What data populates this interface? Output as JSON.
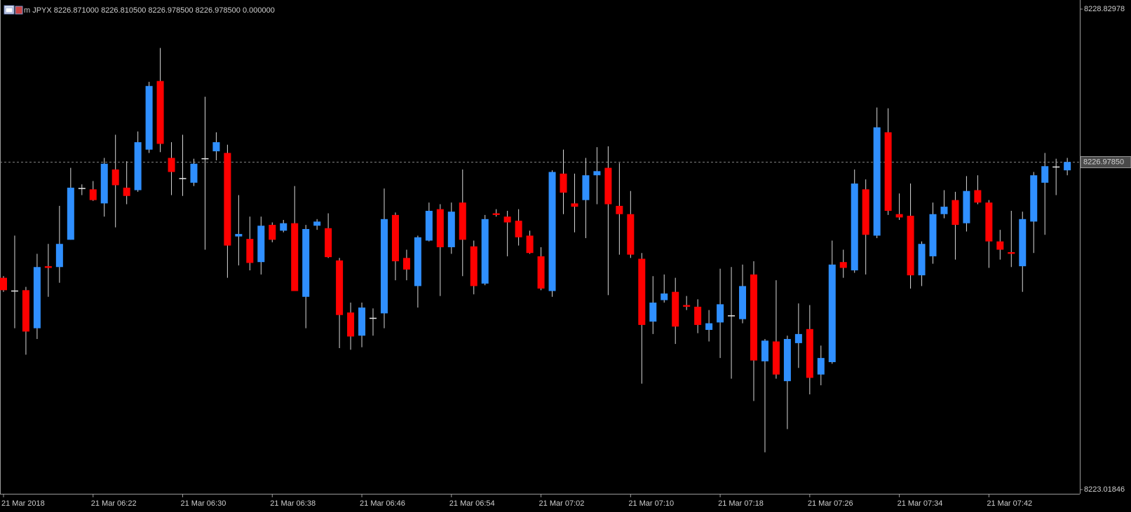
{
  "chart_data": {
    "type": "candlestick",
    "title": "m JPYX 8226.871000 8226.810500 8226.978500 8226.978500 0.000000",
    "up_color": "#2f8fff",
    "down_color": "#ff0000",
    "doji_color": "#e8e8e8",
    "wick_color": "#d8d8d8",
    "ylim": [
      8223.01846,
      8228.82978
    ],
    "yticks": [
      8223.01846,
      8228.82978
    ],
    "price_line": {
      "value": 8226.9785,
      "label": "8226.97850"
    },
    "categories": [
      "21 Mar 2018",
      null,
      null,
      null,
      null,
      null,
      null,
      null,
      "21 Mar 06:22",
      null,
      null,
      null,
      null,
      null,
      null,
      null,
      "21 Mar 06:30",
      null,
      null,
      null,
      null,
      null,
      null,
      null,
      "21 Mar 06:38",
      null,
      null,
      null,
      null,
      null,
      null,
      null,
      "21 Mar 06:46",
      null,
      null,
      null,
      null,
      null,
      null,
      null,
      "21 Mar 06:54",
      null,
      null,
      null,
      null,
      null,
      null,
      null,
      "21 Mar 07:02",
      null,
      null,
      null,
      null,
      null,
      null,
      null,
      "21 Mar 07:10",
      null,
      null,
      null,
      null,
      null,
      null,
      null,
      "21 Mar 07:18",
      null,
      null,
      null,
      null,
      null,
      null,
      null,
      "21 Mar 07:26",
      null,
      null,
      null,
      null,
      null,
      null,
      null,
      "21 Mar 07:34",
      null,
      null,
      null,
      null,
      null,
      null,
      null,
      "21 Mar 07:42",
      null,
      null,
      null,
      null,
      null,
      null,
      null
    ],
    "open": [
      8225.58,
      8225.42,
      8225.43,
      8224.97,
      8225.72,
      8225.71,
      8226.04,
      8226.66,
      8226.65,
      8226.48,
      8226.89,
      8226.67,
      8226.64,
      8227.13,
      8227.96,
      8227.03,
      8226.78,
      8226.73,
      8227.02,
      8227.11,
      8227.09,
      8226.08,
      8226.05,
      8225.77,
      8226.22,
      8226.15,
      8226.24,
      8225.35,
      8226.21,
      8226.18,
      8225.79,
      8225.16,
      8224.88,
      8225.09,
      8225.15,
      8226.34,
      8225.82,
      8225.48,
      8226.03,
      8226.41,
      8225.95,
      8226.49,
      8225.96,
      8225.51,
      8226.36,
      8226.32,
      8226.27,
      8226.09,
      8225.84,
      8225.42,
      8226.84,
      8226.48,
      8226.52,
      8226.82,
      8226.91,
      8226.45,
      8226.35,
      8225.81,
      8225.05,
      8225.31,
      8225.41,
      8225.25,
      8225.23,
      8224.95,
      8225.04,
      8225.12,
      8225.08,
      8225.62,
      8224.57,
      8224.81,
      8224.33,
      8224.79,
      8224.96,
      8224.41,
      8224.56,
      8225.77,
      8225.67,
      8226.65,
      8226.09,
      8227.34,
      8226.35,
      8226.33,
      8225.61,
      8225.84,
      8226.35,
      8226.52,
      8226.24,
      8226.64,
      8226.49,
      8226.02,
      8225.89,
      8225.72,
      8226.26,
      8226.73,
      8226.92,
      8226.88
    ],
    "high": [
      8225.6,
      8226.09,
      8225.47,
      8225.87,
      8225.99,
      8226.45,
      8226.91,
      8226.71,
      8226.75,
      8227.03,
      8227.31,
      8226.99,
      8227.35,
      8227.95,
      8228.36,
      8227.22,
      8227.31,
      8227.02,
      8227.77,
      8227.34,
      8227.19,
      8226.58,
      8226.32,
      8226.32,
      8226.25,
      8226.28,
      8226.69,
      8226.22,
      8226.29,
      8226.36,
      8225.82,
      8225.28,
      8225.28,
      8225.21,
      8226.66,
      8226.37,
      8225.92,
      8226.09,
      8226.49,
      8226.47,
      8226.49,
      8226.89,
      8226.03,
      8226.34,
      8226.41,
      8226.39,
      8226.41,
      8226.15,
      8225.95,
      8226.88,
      8227.13,
      8226.84,
      8227.03,
      8227.16,
      8227.17,
      8226.97,
      8226.63,
      8225.88,
      8225.6,
      8225.62,
      8225.58,
      8225.36,
      8225.32,
      8225.19,
      8225.69,
      8225.71,
      8225.74,
      8225.78,
      8224.84,
      8225.55,
      8224.88,
      8225.27,
      8225.25,
      8224.76,
      8226.03,
      8225.92,
      8226.89,
      8226.77,
      8227.64,
      8227.63,
      8226.6,
      8226.72,
      8226.02,
      8226.49,
      8226.64,
      8226.62,
      8226.81,
      8226.82,
      8226.52,
      8226.16,
      8226.39,
      8226.38,
      8226.86,
      8227.09,
      8227.02,
      8227.03
    ],
    "low": [
      8225.41,
      8224.97,
      8224.65,
      8224.84,
      8225.35,
      8225.52,
      8226.04,
      8226.58,
      8226.51,
      8226.32,
      8226.19,
      8226.47,
      8226.62,
      8227.09,
      8227.1,
      8226.58,
      8226.57,
      8226.69,
      8225.92,
      8227.0,
      8225.58,
      8225.73,
      8225.67,
      8225.62,
      8226.01,
      8226.13,
      8225.42,
      8224.97,
      8226.16,
      8225.82,
      8224.73,
      8224.71,
      8224.74,
      8224.88,
      8224.97,
      8225.55,
      8225.55,
      8225.22,
      8226.02,
      8225.36,
      8225.87,
      8225.6,
      8225.38,
      8225.49,
      8226.32,
      8225.84,
      8225.97,
      8225.87,
      8225.43,
      8225.35,
      8226.35,
      8226.13,
      8226.06,
      8226.47,
      8225.37,
      8225.86,
      8225.82,
      8224.3,
      8224.9,
      8225.28,
      8224.78,
      8225.19,
      8224.91,
      8224.81,
      8224.61,
      8224.36,
      8225.03,
      8224.09,
      8223.47,
      8224.36,
      8223.75,
      8224.49,
      8224.17,
      8224.28,
      8224.54,
      8225.58,
      8225.64,
      8225.62,
      8226.06,
      8226.34,
      8226.28,
      8225.45,
      8225.48,
      8225.75,
      8226.3,
      8225.8,
      8226.14,
      8226.47,
      8225.7,
      8225.8,
      8225.71,
      8225.41,
      8225.88,
      8226.1,
      8226.58,
      8226.82
    ],
    "close": [
      8225.43,
      8225.42,
      8224.93,
      8225.71,
      8225.7,
      8225.99,
      8226.67,
      8226.66,
      8226.52,
      8226.96,
      8226.7,
      8226.57,
      8227.22,
      8227.9,
      8227.2,
      8226.86,
      8226.78,
      8226.96,
      8227.02,
      8227.22,
      8225.97,
      8226.11,
      8225.76,
      8226.21,
      8226.04,
      8226.24,
      8225.42,
      8226.17,
      8226.26,
      8225.83,
      8225.13,
      8224.87,
      8225.22,
      8225.09,
      8226.29,
      8225.78,
      8225.68,
      8226.07,
      8226.39,
      8225.95,
      8226.38,
      8226.04,
      8225.48,
      8226.29,
      8226.34,
      8226.25,
      8226.07,
      8225.88,
      8225.45,
      8226.86,
      8226.61,
      8226.44,
      8226.82,
      8226.87,
      8226.47,
      8226.35,
      8225.86,
      8225.01,
      8225.28,
      8225.39,
      8224.99,
      8225.23,
      8225.01,
      8225.03,
      8225.26,
      8225.12,
      8225.48,
      8224.58,
      8224.82,
      8224.41,
      8224.84,
      8224.9,
      8224.37,
      8224.61,
      8225.74,
      8225.7,
      8226.72,
      8226.1,
      8227.4,
      8226.39,
      8226.31,
      8225.61,
      8225.99,
      8226.35,
      8226.44,
      8226.22,
      8226.63,
      8226.49,
      8226.02,
      8225.92,
      8225.87,
      8226.29,
      8226.82,
      8226.93,
      8226.92,
      8226.98
    ]
  }
}
